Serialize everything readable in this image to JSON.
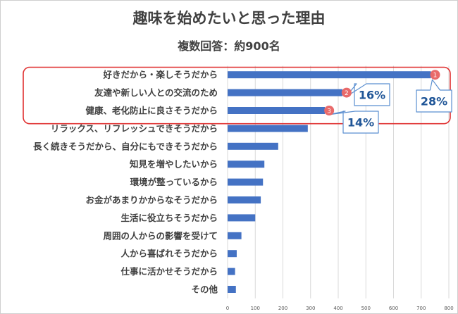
{
  "chart_data": {
    "type": "bar",
    "orientation": "horizontal",
    "title": "趣味を始めたいと思った理由",
    "subtitle": "複数回答：約900名",
    "categories": [
      "好きだから・楽しそうだから",
      "友達や新しい人との交流のため",
      "健康、老化防止に良さそうだから",
      "リラックス、リフレッシュできそうだから",
      "長く続きそうだから、自分にもできそうだから",
      "知見を増やしたいから",
      "環境が整っているから",
      "お金があまりかからなそうだから",
      "生活に役立ちそうだから",
      "周囲の人からの影響を受けて",
      "人から喜ばれそうだから",
      "仕事に活かせそうだから",
      "その他"
    ],
    "values": [
      735,
      415,
      352,
      290,
      183,
      133,
      128,
      120,
      100,
      50,
      33,
      27,
      30
    ],
    "xlim": [
      0,
      800
    ],
    "xticks": [
      "0",
      "100",
      "200",
      "300",
      "400",
      "500",
      "600",
      "700",
      "800"
    ],
    "grid": true,
    "bar_color": "#4472c4",
    "highlight": {
      "frame_color": "#e03030",
      "badges": [
        "1",
        "2",
        "3"
      ],
      "badge_color": "#e96a6a",
      "callouts": [
        "28%",
        "16%",
        "14%"
      ],
      "callout_border": "#5b8fd0",
      "callout_text_color": "#1f5597"
    }
  }
}
